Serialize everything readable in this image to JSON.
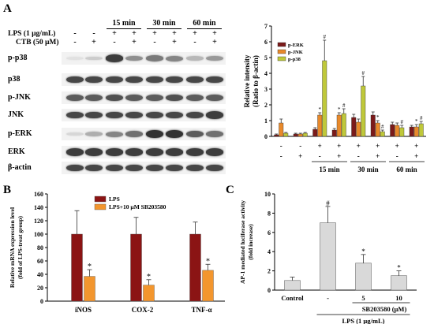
{
  "panels": {
    "a": "A",
    "b": "B",
    "c": "C"
  },
  "blot": {
    "lps_label": "LPS (1 µg/mL)",
    "ctb_label": "CTB (50 µM)",
    "times": [
      "15 min",
      "30 min",
      "60  min"
    ],
    "lps_signs": [
      "-",
      "-",
      "+",
      "+",
      "+",
      "+",
      "+",
      "+"
    ],
    "ctb_signs": [
      "-",
      "+",
      "-",
      "+",
      "-",
      "+",
      "-",
      "+"
    ],
    "rows": [
      {
        "label": "p-p38",
        "intensity": [
          0.05,
          0.15,
          0.85,
          0.45,
          0.55,
          0.5,
          0.25,
          0.4
        ]
      },
      {
        "label": "p38",
        "intensity": [
          0.8,
          0.8,
          0.8,
          0.8,
          0.8,
          0.8,
          0.8,
          0.8
        ]
      },
      {
        "label": "p-JNK",
        "intensity": [
          0.7,
          0.7,
          0.75,
          0.7,
          0.7,
          0.75,
          0.7,
          0.7
        ]
      },
      {
        "label": "JNK",
        "intensity": [
          0.8,
          0.8,
          0.8,
          0.8,
          0.8,
          0.8,
          0.8,
          0.85
        ]
      },
      {
        "label": "p-ERK",
        "intensity": [
          0.1,
          0.3,
          0.5,
          0.6,
          0.9,
          0.9,
          0.7,
          0.6
        ]
      },
      {
        "label": "ERK",
        "intensity": [
          0.85,
          0.85,
          0.85,
          0.85,
          0.85,
          0.85,
          0.85,
          0.85
        ]
      },
      {
        "label": "β-actin",
        "intensity": [
          0.8,
          0.8,
          0.8,
          0.8,
          0.8,
          0.8,
          0.8,
          0.8
        ]
      }
    ]
  },
  "chart_data": [
    {
      "id": "A-right",
      "type": "bar",
      "ylabel": "Relative intensity\n(Ratio to β-actin)",
      "ylim": [
        0,
        7
      ],
      "yticks": [
        0,
        1,
        2,
        3,
        4,
        5,
        6,
        7
      ],
      "legend": "top-left",
      "groups": [
        "ctrl",
        "ctrl+CTB",
        "15 min LPS",
        "15 min LPS+CTB",
        "30 min LPS",
        "30 min LPS+CTB",
        "60 min LPS",
        "60 min LPS+CTB"
      ],
      "lps_signs": [
        "-",
        "-",
        "+",
        "+",
        "+",
        "+",
        "+",
        "+"
      ],
      "ctb_signs": [
        "-",
        "+",
        "-",
        "+",
        "-",
        "+",
        "-",
        "+"
      ],
      "time_labels": [
        "15 min",
        "30 min",
        "60  min"
      ],
      "series": [
        {
          "name": "p-ERK",
          "color": "#7b1a1a",
          "values": [
            0.1,
            0.15,
            0.45,
            0.4,
            1.2,
            1.35,
            0.75,
            0.6
          ],
          "errors": [
            0.05,
            0.05,
            0.1,
            0.1,
            0.2,
            0.2,
            0.15,
            0.1
          ],
          "marks": [
            "",
            "",
            "",
            "",
            "",
            "",
            "",
            ""
          ]
        },
        {
          "name": "p-JNK",
          "color": "#e8892b",
          "values": [
            0.85,
            0.15,
            1.35,
            1.35,
            0.9,
            0.85,
            0.7,
            0.6
          ],
          "errors": [
            0.25,
            0.05,
            0.15,
            0.15,
            0.2,
            0.15,
            0.15,
            0.15
          ],
          "marks": [
            "",
            "",
            "*",
            "*",
            "",
            "*",
            "",
            "*"
          ]
        },
        {
          "name": "p-p38",
          "color": "#bfc83a",
          "values": [
            0.2,
            0.2,
            4.8,
            1.45,
            3.2,
            0.3,
            0.55,
            0.8
          ],
          "errors": [
            0.05,
            0.05,
            1.3,
            0.3,
            0.6,
            0.1,
            0.15,
            0.15
          ],
          "marks": [
            "",
            "",
            "#",
            "#",
            "#",
            "#",
            "#",
            "#"
          ]
        }
      ]
    },
    {
      "id": "B",
      "type": "bar",
      "ylabel": "Relative mRNA expression level\n(fold of LPS-treat group)",
      "ylim": [
        0,
        160
      ],
      "yticks": [
        0,
        20,
        40,
        60,
        80,
        100,
        120,
        140,
        160
      ],
      "categories": [
        "iNOS",
        "COX-2",
        "TNF-α"
      ],
      "legend": "top-left",
      "series": [
        {
          "name": "LPS",
          "color": "#8b1414",
          "values": [
            100,
            100,
            100
          ],
          "errors": [
            35,
            25,
            18
          ],
          "marks": [
            "",
            "",
            ""
          ]
        },
        {
          "name": "LPS+10 µM SB203580",
          "color": "#f3962e",
          "values": [
            37,
            24,
            46
          ],
          "errors": [
            10,
            8,
            9
          ],
          "marks": [
            "*",
            "*",
            "*"
          ]
        }
      ]
    },
    {
      "id": "C",
      "type": "bar",
      "ylabel": "AP-1 mediated luciferase activity\n(fold increase)",
      "ylim": [
        0,
        10
      ],
      "yticks": [
        0,
        2,
        4,
        6,
        8,
        10
      ],
      "categories": [
        "Control",
        "-",
        "5",
        "10"
      ],
      "values": [
        1.0,
        7.0,
        2.8,
        1.5
      ],
      "errors": [
        0.35,
        1.7,
        0.9,
        0.5
      ],
      "marks": [
        "",
        "#",
        "*",
        "*"
      ],
      "color": "#d9d9d9",
      "sb_label": "SB203580 (µM)",
      "lps_label": "LPS (1 µg/mL)"
    }
  ]
}
